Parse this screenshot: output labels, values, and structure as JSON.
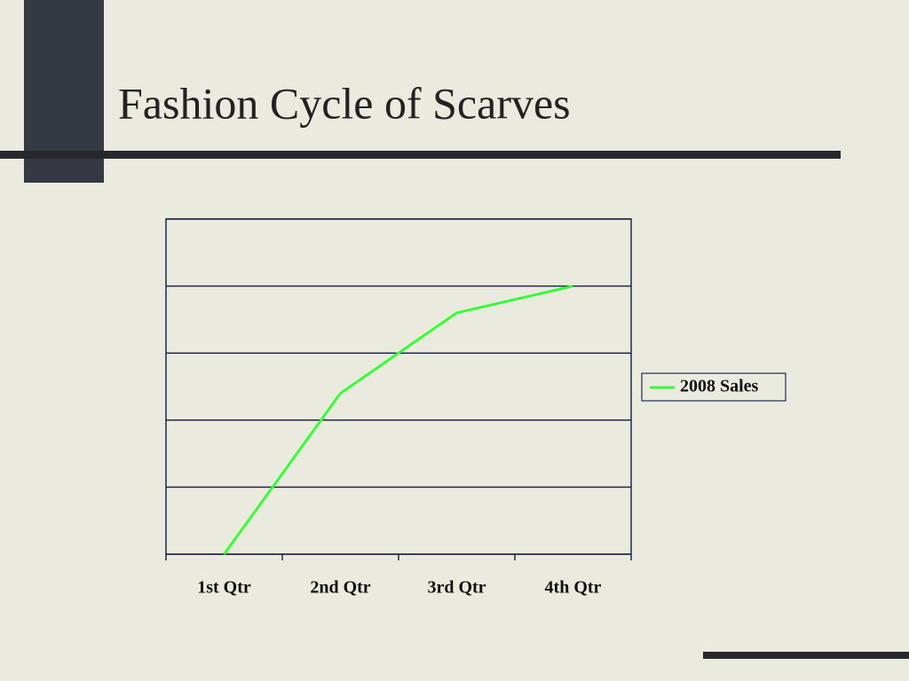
{
  "chart_data": {
    "type": "line",
    "title": "Fashion Cycle  of Scarves",
    "categories": [
      "1st Qtr",
      "2nd Qtr",
      "3rd Qtr",
      "4th Qtr"
    ],
    "series": [
      {
        "name": "2008 Sales",
        "color": "#33ff33",
        "values": [
          0,
          2.4,
          3.6,
          4.0
        ]
      }
    ],
    "ylim": [
      0,
      5
    ],
    "yticks": [
      0,
      1,
      2,
      3,
      4,
      5
    ],
    "show_ytick_labels": false,
    "grid": true,
    "legend": "right"
  }
}
